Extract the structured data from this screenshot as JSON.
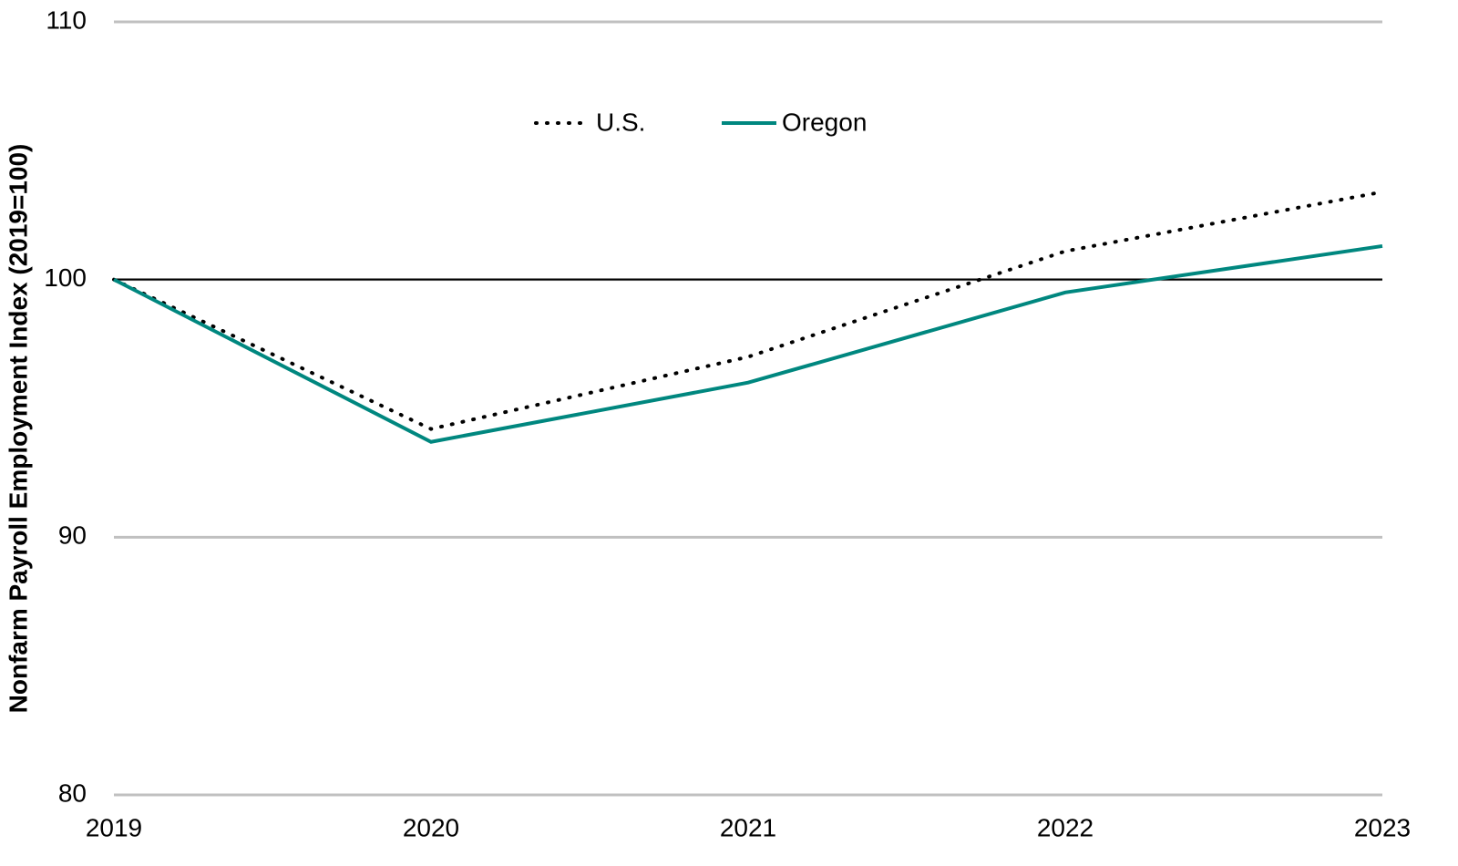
{
  "chart_data": {
    "type": "line",
    "y_label": "Nonfarm Payroll Employment Index (2019=100)",
    "x": [
      2019,
      2020,
      2021,
      2022,
      2023
    ],
    "xlim": [
      2019,
      2023
    ],
    "xticks": [
      2019,
      2020,
      2021,
      2022,
      2023
    ],
    "ylim": [
      80,
      110
    ],
    "yticks": [
      80,
      90,
      100,
      110
    ],
    "grid": true,
    "reference_line": 100,
    "legend": "top",
    "series": [
      {
        "name": "U.S.",
        "color": "#000000",
        "style": "dotted",
        "values": [
          100,
          94.2,
          97.0,
          101.1,
          103.4
        ]
      },
      {
        "name": "Oregon",
        "color": "#00877f",
        "style": "solid",
        "values": [
          100,
          93.7,
          96.0,
          99.5,
          101.3
        ]
      }
    ]
  }
}
